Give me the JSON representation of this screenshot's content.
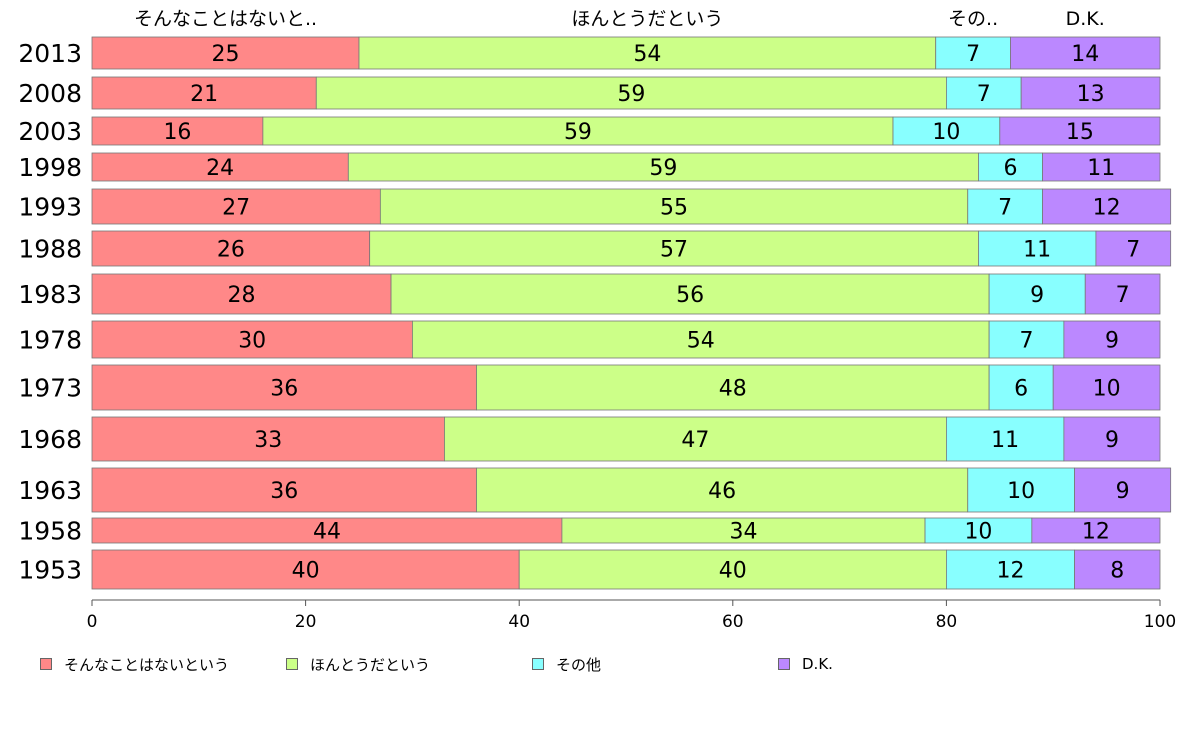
{
  "chart_data": {
    "type": "bar",
    "orientation": "horizontal",
    "stacked": true,
    "categories": [
      "2013",
      "2008",
      "2003",
      "1998",
      "1993",
      "1988",
      "1983",
      "1978",
      "1973",
      "1968",
      "1963",
      "1958",
      "1953"
    ],
    "series": [
      {
        "name": "そんなことはないという",
        "header": "そんなことはないと..",
        "color": "#FF8888",
        "values": [
          25,
          21,
          16,
          24,
          27,
          26,
          28,
          30,
          36,
          33,
          36,
          44,
          40
        ]
      },
      {
        "name": "ほんとうだという",
        "header": "ほんとうだという",
        "color": "#CCFF88",
        "values": [
          54,
          59,
          59,
          59,
          55,
          57,
          56,
          54,
          48,
          47,
          46,
          34,
          40
        ]
      },
      {
        "name": "その他",
        "header": "その..",
        "color": "#88FFFF",
        "values": [
          7,
          7,
          10,
          6,
          7,
          11,
          9,
          7,
          6,
          11,
          10,
          10,
          12
        ]
      },
      {
        "name": "D.K.",
        "header": "D.K.",
        "color": "#BB88FF",
        "values": [
          14,
          13,
          15,
          11,
          12,
          7,
          7,
          9,
          10,
          9,
          9,
          12,
          8
        ]
      }
    ],
    "xlim": [
      0,
      100
    ],
    "xticks": [
      0,
      20,
      40,
      60,
      80,
      100
    ],
    "grid": false,
    "legend_position": "bottom"
  }
}
